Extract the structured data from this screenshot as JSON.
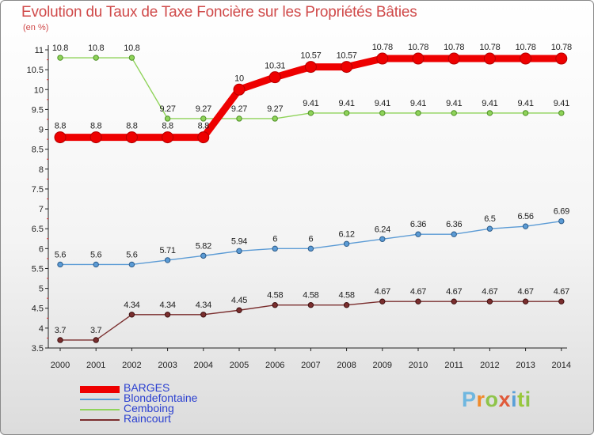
{
  "title": "Evolution du Taux de Taxe Foncière sur les Propriétés Bâties",
  "unit": "(en %)",
  "logo": {
    "text": "Proxiti",
    "letters": [
      "P",
      "r",
      "o",
      "x",
      "i",
      "t",
      "i"
    ]
  },
  "chart_data": {
    "type": "line",
    "title": "Evolution du Taux de Taxe Foncière sur les Propriétés Bâties",
    "ylabel": "(en %)",
    "xlabel": "",
    "x": [
      2000,
      2001,
      2002,
      2003,
      2004,
      2005,
      2006,
      2007,
      2008,
      2009,
      2010,
      2011,
      2012,
      2013,
      2014
    ],
    "ylim": [
      3.5,
      11
    ],
    "yticks": [
      3.5,
      4,
      4.5,
      5,
      5.5,
      6,
      6.5,
      7,
      7.5,
      8,
      8.5,
      9,
      9.5,
      10,
      10.5,
      11
    ],
    "grid": false,
    "legend_position": "bottom-left",
    "series": [
      {
        "name": "BARGES",
        "color": "#ee0000",
        "values": [
          8.8,
          8.8,
          8.8,
          8.8,
          8.8,
          10,
          10.31,
          10.57,
          10.57,
          10.78,
          10.78,
          10.78,
          10.78,
          10.78,
          10.78
        ],
        "labels": [
          "8.8",
          "8.8",
          "8.8",
          "8.8",
          "8.8",
          "10",
          "10.31",
          "10.57",
          "10.57",
          "10.78",
          "10.78",
          "10.78",
          "10.78",
          "10.78",
          "10.78"
        ]
      },
      {
        "name": "Blondefontaine",
        "color": "#5b9bd5",
        "values": [
          5.6,
          5.6,
          5.6,
          5.71,
          5.82,
          5.94,
          6,
          6,
          6.12,
          6.24,
          6.36,
          6.36,
          6.5,
          6.56,
          6.69
        ],
        "labels": [
          "5.6",
          "5.6",
          "5.6",
          "5.71",
          "5.82",
          "5.94",
          "6",
          "6",
          "6.12",
          "6.24",
          "6.36",
          "6.36",
          "6.5",
          "6.56",
          "6.69"
        ]
      },
      {
        "name": "Cemboing",
        "color": "#8fd35a",
        "values": [
          10.8,
          10.8,
          10.8,
          9.27,
          9.27,
          9.27,
          9.27,
          9.41,
          9.41,
          9.41,
          9.41,
          9.41,
          9.41,
          9.41,
          9.41
        ],
        "labels": [
          "10.8",
          "10.8",
          "10.8",
          "9.27",
          "9.27",
          "9.27",
          "9.27",
          "9.41",
          "9.41",
          "9.41",
          "9.41",
          "9.41",
          "9.41",
          "9.41",
          "9.41"
        ]
      },
      {
        "name": "Raincourt",
        "color": "#7a2e2e",
        "values": [
          3.7,
          3.7,
          4.34,
          4.34,
          4.34,
          4.45,
          4.58,
          4.58,
          4.58,
          4.67,
          4.67,
          4.67,
          4.67,
          4.67,
          4.67
        ],
        "labels": [
          "3.7",
          "3.7",
          "4.34",
          "4.34",
          "4.34",
          "4.45",
          "4.58",
          "4.58",
          "4.58",
          "4.67",
          "4.67",
          "4.67",
          "4.67",
          "4.67",
          "4.67"
        ]
      }
    ]
  }
}
